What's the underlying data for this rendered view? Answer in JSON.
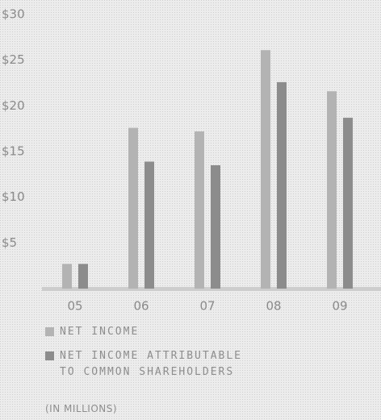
{
  "chart_data": {
    "type": "bar",
    "categories": [
      "05",
      "06",
      "07",
      "08",
      "09"
    ],
    "series": [
      {
        "name": "NET INCOME",
        "color": "#b3b3b3",
        "values": [
          2.7,
          17.6,
          17.2,
          26.1,
          21.6
        ]
      },
      {
        "name": "NET INCOME ATTRIBUTABLE TO COMMON SHAREHOLDERS",
        "color": "#8c8c8c",
        "values": [
          2.7,
          13.9,
          13.5,
          22.6,
          18.7
        ]
      }
    ],
    "ylim": [
      0,
      30
    ],
    "yticks": [
      {
        "value": 5,
        "label": "$5"
      },
      {
        "value": 10,
        "label": "$10"
      },
      {
        "value": 15,
        "label": "$15"
      },
      {
        "value": 20,
        "label": "$20"
      },
      {
        "value": 25,
        "label": "$25"
      },
      {
        "value": 30,
        "label": "$30"
      }
    ],
    "note": "(IN MILLIONS)"
  }
}
